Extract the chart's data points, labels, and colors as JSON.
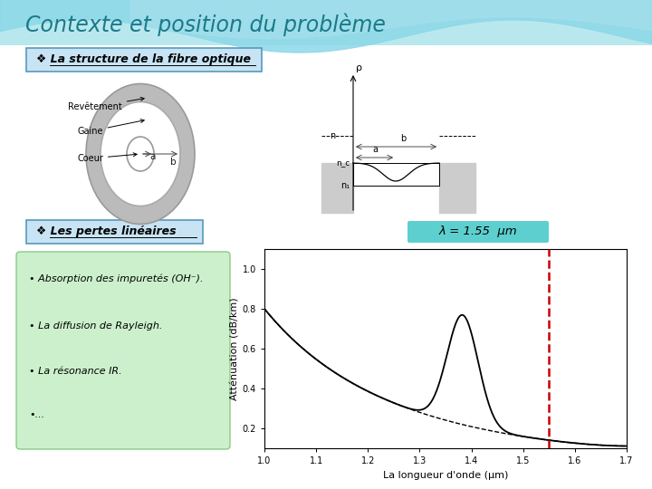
{
  "title": "Contexte et position du problème",
  "title_color": "#1a7a8a",
  "section1_label": "❖ La structure de la fibre optique",
  "section2_label": "❖ Les pertes linéaires",
  "lambda_label": "λ = 1.55  μm",
  "lambda_box_color": "#5ecfcf",
  "bullet1": "• Absorption des impuretés (OH⁻).",
  "bullet2": "• La diffusion de Rayleigh.",
  "bullet3": "• La résonance IR.",
  "bullet4": "•...",
  "bullet_box_color": "#ccf0cc",
  "xaxis_label": "La longueur d'onde (μm)",
  "yaxis_label": "Atténuation (dB/km)",
  "xticks": [
    1.0,
    1.1,
    1.2,
    1.3,
    1.4,
    1.5,
    1.6,
    1.7
  ],
  "yticks": [
    0.2,
    0.4,
    0.6,
    0.8,
    1.0
  ],
  "dashed_line_x": 1.55,
  "background_color": "#ffffff"
}
